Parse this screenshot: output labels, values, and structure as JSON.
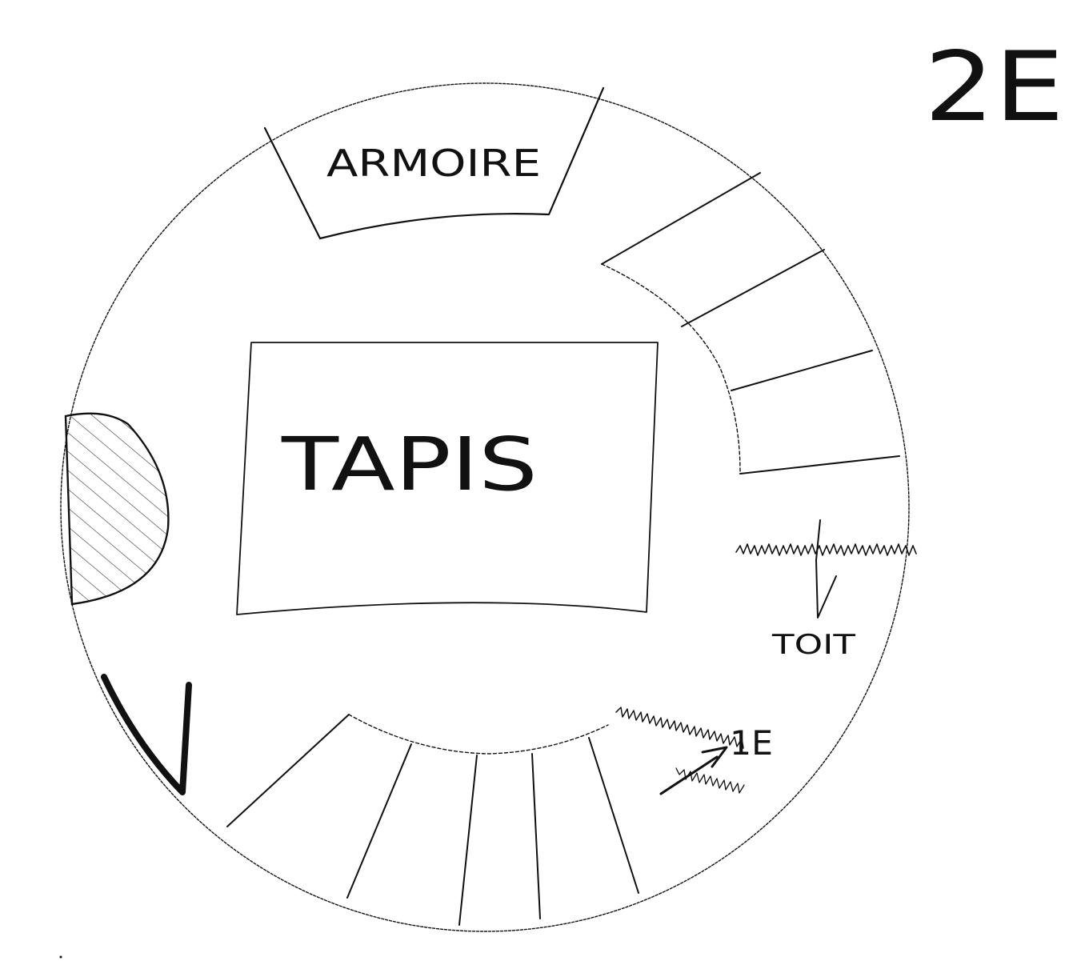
{
  "floor_label": "2E",
  "rooms": {
    "wardrobe": {
      "label": "ARMOIRE"
    },
    "rug": {
      "label": "TAPIS"
    },
    "roof": {
      "label": "TOIT"
    }
  },
  "stairs_down": {
    "label": "1E"
  },
  "colors": {
    "ink": "#111111",
    "paper": "#ffffff"
  }
}
